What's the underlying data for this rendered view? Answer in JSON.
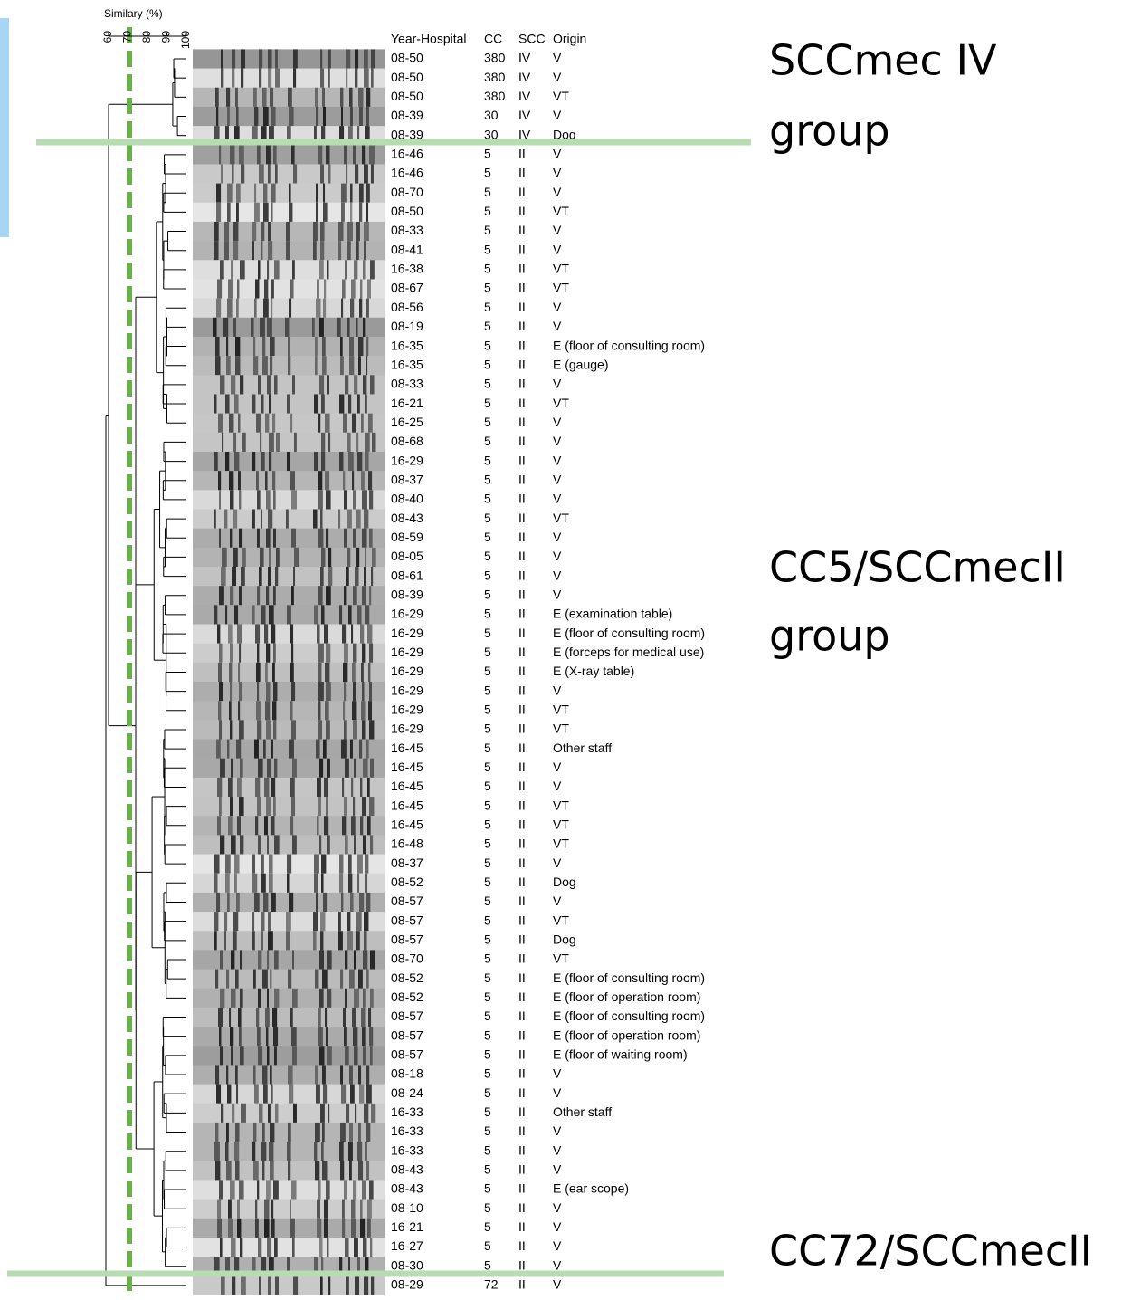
{
  "axis": {
    "title": "Similary (%)",
    "range": [
      60,
      100
    ],
    "ticks": [
      60,
      70,
      80,
      90,
      100
    ]
  },
  "table": {
    "header": [
      "Year-Hospital",
      "CC",
      "SCC",
      "Origin"
    ],
    "rows": [
      [
        "08-50",
        "380",
        "IV",
        "V"
      ],
      [
        "08-50",
        "380",
        "IV",
        "V"
      ],
      [
        "08-50",
        "380",
        "IV",
        "VT"
      ],
      [
        "08-39",
        "30",
        "IV",
        "V"
      ],
      [
        "08-39",
        "30",
        "IV",
        "Dog"
      ],
      [
        "16-46",
        "5",
        "II",
        "V"
      ],
      [
        "16-46",
        "5",
        "II",
        "V"
      ],
      [
        "08-70",
        "5",
        "II",
        "V"
      ],
      [
        "08-50",
        "5",
        "II",
        "VT"
      ],
      [
        "08-33",
        "5",
        "II",
        "V"
      ],
      [
        "08-41",
        "5",
        "II",
        "V"
      ],
      [
        "16-38",
        "5",
        "II",
        "VT"
      ],
      [
        "08-67",
        "5",
        "II",
        "VT"
      ],
      [
        "08-56",
        "5",
        "II",
        "V"
      ],
      [
        "08-19",
        "5",
        "II",
        "V"
      ],
      [
        "16-35",
        "5",
        "II",
        "E (floor of consulting room)"
      ],
      [
        "16-35",
        "5",
        "II",
        "E (gauge)"
      ],
      [
        "08-33",
        "5",
        "II",
        "V"
      ],
      [
        "16-21",
        "5",
        "II",
        "VT"
      ],
      [
        "16-25",
        "5",
        "II",
        "V"
      ],
      [
        "08-68",
        "5",
        "II",
        "V"
      ],
      [
        "16-29",
        "5",
        "II",
        "V"
      ],
      [
        "08-37",
        "5",
        "II",
        "V"
      ],
      [
        "08-40",
        "5",
        "II",
        "V"
      ],
      [
        "08-43",
        "5",
        "II",
        "VT"
      ],
      [
        "08-59",
        "5",
        "II",
        "V"
      ],
      [
        "08-05",
        "5",
        "II",
        "V"
      ],
      [
        "08-61",
        "5",
        "II",
        "V"
      ],
      [
        "08-39",
        "5",
        "II",
        "V"
      ],
      [
        "16-29",
        "5",
        "II",
        "E (examination table)"
      ],
      [
        "16-29",
        "5",
        "II",
        "E (floor of consulting room)"
      ],
      [
        "16-29",
        "5",
        "II",
        "E (forceps for medical use)"
      ],
      [
        "16-29",
        "5",
        "II",
        "E (X-ray table)"
      ],
      [
        "16-29",
        "5",
        "II",
        "V"
      ],
      [
        "16-29",
        "5",
        "II",
        "VT"
      ],
      [
        "16-29",
        "5",
        "II",
        "VT"
      ],
      [
        "16-45",
        "5",
        "II",
        "Other staff"
      ],
      [
        "16-45",
        "5",
        "II",
        "V"
      ],
      [
        "16-45",
        "5",
        "II",
        "V"
      ],
      [
        "16-45",
        "5",
        "II",
        "VT"
      ],
      [
        "16-45",
        "5",
        "II",
        "VT"
      ],
      [
        "16-48",
        "5",
        "II",
        "VT"
      ],
      [
        "08-37",
        "5",
        "II",
        "V"
      ],
      [
        "08-52",
        "5",
        "II",
        "Dog"
      ],
      [
        "08-57",
        "5",
        "II",
        "V"
      ],
      [
        "08-57",
        "5",
        "II",
        "VT"
      ],
      [
        "08-57",
        "5",
        "II",
        "Dog"
      ],
      [
        "08-70",
        "5",
        "II",
        "VT"
      ],
      [
        "08-52",
        "5",
        "II",
        "E (floor of consulting room)"
      ],
      [
        "08-52",
        "5",
        "II",
        "E (floor of operation room)"
      ],
      [
        "08-57",
        "5",
        "II",
        "E (floor of consulting room)"
      ],
      [
        "08-57",
        "5",
        "II",
        "E (floor of operation room)"
      ],
      [
        "08-57",
        "5",
        "II",
        "E (floor of waiting room)"
      ],
      [
        "08-18",
        "5",
        "II",
        "V"
      ],
      [
        "08-24",
        "5",
        "II",
        "V"
      ],
      [
        "16-33",
        "5",
        "II",
        "Other staff"
      ],
      [
        "16-33",
        "5",
        "II",
        "V"
      ],
      [
        "16-33",
        "5",
        "II",
        "V"
      ],
      [
        "08-43",
        "5",
        "II",
        "V"
      ],
      [
        "08-43",
        "5",
        "II",
        "E (ear scope)"
      ],
      [
        "08-10",
        "5",
        "II",
        "V"
      ],
      [
        "16-21",
        "5",
        "II",
        "V"
      ],
      [
        "16-27",
        "5",
        "II",
        "V"
      ],
      [
        "08-30",
        "5",
        "II",
        "V"
      ],
      [
        "08-29",
        "72",
        "II",
        "V"
      ]
    ]
  },
  "groups": [
    {
      "lines": [
        "SCCmec IV",
        "group"
      ]
    },
    {
      "lines": [
        "CC5/SCCmecII",
        "group"
      ]
    },
    {
      "lines": [
        "CC72/SCCmecII"
      ]
    }
  ]
}
